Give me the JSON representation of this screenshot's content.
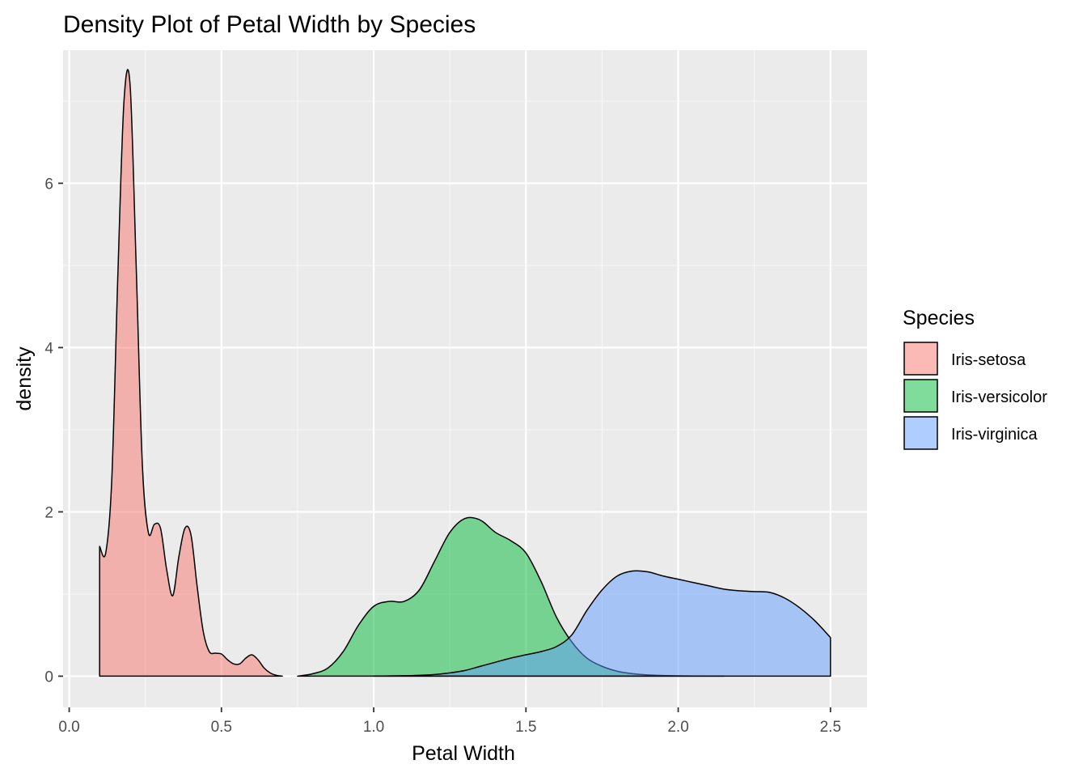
{
  "chart_data": {
    "type": "area",
    "title": "Density Plot of Petal Width by Species",
    "xlabel": "Petal Width",
    "ylabel": "density",
    "xlim": [
      -0.02,
      2.62
    ],
    "ylim": [
      -0.38,
      7.62
    ],
    "xticks": [
      {
        "value": 0.0,
        "label": "0.0"
      },
      {
        "value": 0.5,
        "label": "0.5"
      },
      {
        "value": 1.0,
        "label": "1.0"
      },
      {
        "value": 1.5,
        "label": "1.5"
      },
      {
        "value": 2.0,
        "label": "2.0"
      },
      {
        "value": 2.5,
        "label": "2.5"
      }
    ],
    "yticks": [
      {
        "value": 0,
        "label": "0"
      },
      {
        "value": 2,
        "label": "2"
      },
      {
        "value": 4,
        "label": "4"
      },
      {
        "value": 6,
        "label": "6"
      }
    ],
    "grid": true,
    "legend": {
      "title": "Species",
      "placement": "right"
    },
    "series": [
      {
        "name": "Iris-setosa",
        "color": "#F8766D",
        "x": [
          0.1,
          0.12,
          0.14,
          0.16,
          0.18,
          0.2,
          0.22,
          0.24,
          0.26,
          0.28,
          0.3,
          0.32,
          0.34,
          0.36,
          0.38,
          0.4,
          0.42,
          0.44,
          0.46,
          0.48,
          0.5,
          0.52,
          0.54,
          0.56,
          0.58,
          0.6,
          0.62,
          0.64,
          0.66,
          0.68,
          0.7
        ],
        "y": [
          1.58,
          1.5,
          2.4,
          4.9,
          7.0,
          7.2,
          5.0,
          2.6,
          1.75,
          1.85,
          1.8,
          1.3,
          0.98,
          1.45,
          1.8,
          1.72,
          1.1,
          0.55,
          0.3,
          0.28,
          0.27,
          0.2,
          0.15,
          0.15,
          0.22,
          0.26,
          0.2,
          0.1,
          0.04,
          0.01,
          0.0
        ]
      },
      {
        "name": "Iris-versicolor",
        "color": "#00BA38",
        "x": [
          0.75,
          0.8,
          0.85,
          0.9,
          0.95,
          1.0,
          1.05,
          1.1,
          1.15,
          1.2,
          1.25,
          1.3,
          1.35,
          1.4,
          1.45,
          1.5,
          1.55,
          1.6,
          1.65,
          1.7,
          1.75,
          1.8,
          1.85,
          1.9,
          1.95,
          2.0,
          2.05,
          2.1,
          2.15
        ],
        "y": [
          0.0,
          0.03,
          0.1,
          0.3,
          0.62,
          0.85,
          0.91,
          0.91,
          1.05,
          1.4,
          1.75,
          1.92,
          1.9,
          1.75,
          1.65,
          1.5,
          1.15,
          0.72,
          0.42,
          0.22,
          0.12,
          0.06,
          0.03,
          0.015,
          0.008,
          0.004,
          0.002,
          0.001,
          0.0
        ]
      },
      {
        "name": "Iris-virginica",
        "color": "#619CFF",
        "x": [
          1.0,
          1.1,
          1.15,
          1.2,
          1.25,
          1.3,
          1.35,
          1.4,
          1.45,
          1.5,
          1.55,
          1.6,
          1.65,
          1.7,
          1.75,
          1.8,
          1.85,
          1.9,
          1.95,
          2.0,
          2.05,
          2.1,
          2.15,
          2.2,
          2.25,
          2.3,
          2.35,
          2.4,
          2.45,
          2.5
        ],
        "y": [
          0.0,
          0.005,
          0.01,
          0.02,
          0.04,
          0.07,
          0.12,
          0.17,
          0.22,
          0.26,
          0.3,
          0.36,
          0.5,
          0.8,
          1.05,
          1.22,
          1.28,
          1.27,
          1.22,
          1.18,
          1.14,
          1.1,
          1.06,
          1.04,
          1.03,
          1.02,
          0.95,
          0.83,
          0.67,
          0.47
        ]
      }
    ]
  }
}
